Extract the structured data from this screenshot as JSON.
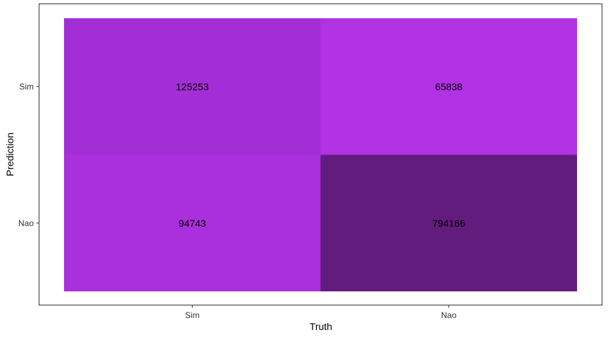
{
  "chart_data": {
    "type": "heatmap",
    "title": "",
    "xlabel": "Truth",
    "ylabel": "Prediction",
    "x_categories": [
      "Sim",
      "Nao"
    ],
    "y_categories": [
      "Sim",
      "Nao"
    ],
    "cells": [
      {
        "truth": "Sim",
        "prediction": "Sim",
        "value": 125253,
        "color": "#a42ed6"
      },
      {
        "truth": "Nao",
        "prediction": "Sim",
        "value": 65838,
        "color": "#b132e3"
      },
      {
        "truth": "Sim",
        "prediction": "Nao",
        "value": 94743,
        "color": "#aa2fdd"
      },
      {
        "truth": "Nao",
        "prediction": "Nao",
        "value": 794166,
        "color": "#621c7d"
      }
    ],
    "legend": "none",
    "grid": false
  }
}
